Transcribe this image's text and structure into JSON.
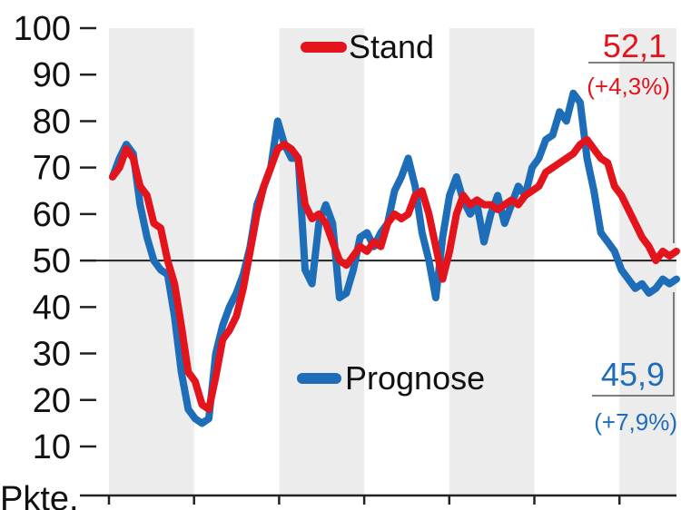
{
  "chart_data": {
    "type": "line",
    "ylabel": "Pkte.",
    "ylim": [
      0,
      100
    ],
    "yticks": [
      "100",
      "90",
      "80",
      "70",
      "60",
      "50",
      "40",
      "30",
      "20",
      "10"
    ],
    "reference_line": 50,
    "x_period_count": 7,
    "colors": {
      "Stand": "#e3141c",
      "Prognose": "#1d6db8",
      "band": "#ececec",
      "axis": "#222222"
    },
    "series": [
      {
        "name": "Stand",
        "end_value": "52,1",
        "end_change": "(+4,3%)",
        "values": [
          68,
          70,
          74,
          72,
          66,
          64,
          58,
          57,
          50,
          45,
          36,
          26,
          24,
          19,
          18,
          25,
          33,
          35,
          38,
          44,
          52,
          60,
          66,
          70,
          74,
          75,
          74,
          72,
          62,
          59,
          60,
          58,
          54,
          50,
          49,
          51,
          53,
          52,
          54,
          53,
          58,
          60,
          59,
          60,
          64,
          65,
          60,
          53,
          46,
          52,
          60,
          64,
          62,
          63,
          62,
          62,
          61,
          62,
          63,
          62,
          64,
          65,
          66,
          69,
          70,
          71,
          72,
          73,
          75,
          76,
          74,
          72,
          71,
          66,
          64,
          61,
          58,
          55,
          53,
          50,
          52,
          51,
          52
        ]
      },
      {
        "name": "Prognose",
        "end_value": "45,9",
        "end_change": "(+7,9%)",
        "values": [
          68,
          72,
          75,
          73,
          62,
          55,
          50,
          48,
          47,
          38,
          26,
          18,
          16,
          15,
          16,
          30,
          36,
          40,
          43,
          47,
          53,
          62,
          66,
          70,
          80,
          75,
          72,
          72,
          48,
          45,
          58,
          62,
          58,
          42,
          43,
          48,
          55,
          56,
          53,
          56,
          58,
          65,
          68,
          72,
          66,
          56,
          50,
          42,
          55,
          64,
          68,
          63,
          60,
          62,
          54,
          60,
          64,
          58,
          62,
          66,
          64,
          70,
          72,
          76,
          77,
          82,
          80,
          86,
          84,
          72,
          65,
          56,
          54,
          52,
          48,
          46,
          44,
          45,
          43,
          44,
          46,
          45,
          46
        ]
      }
    ]
  }
}
